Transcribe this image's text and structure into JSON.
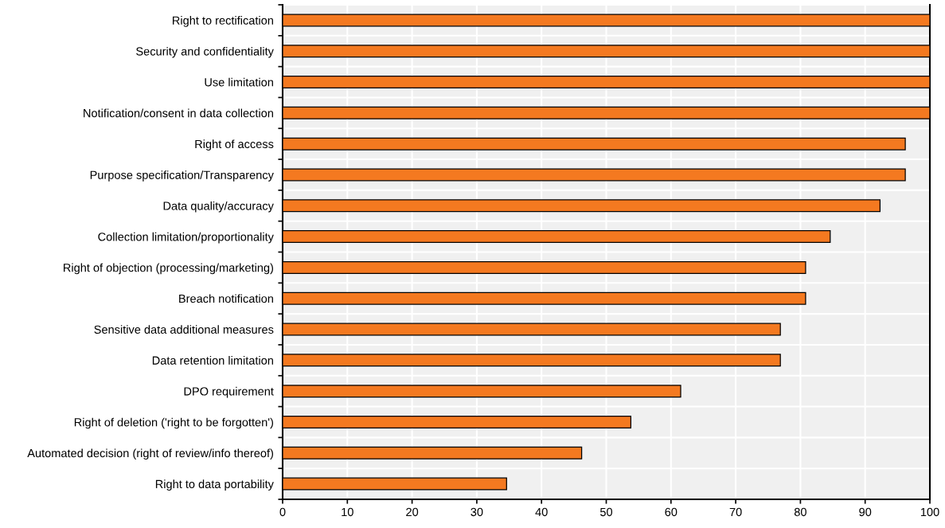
{
  "chart_data": {
    "type": "bar",
    "orientation": "horizontal",
    "categories": [
      "Right to rectification",
      "Security and confidentiality",
      "Use limitation",
      "Notification/consent in data collection",
      "Right of access",
      "Purpose specification/Transparency",
      "Data quality/accuracy",
      "Collection limitation/proportionality",
      "Right of objection (processing/marketing)",
      "Breach notification",
      "Sensitive data additional measures",
      "Data retention limitation",
      "DPO requirement",
      "Right of deletion ('right to be forgotten')",
      "Automated decision (right of review/info thereof)",
      "Right to data portability"
    ],
    "values": [
      100,
      100,
      100,
      100,
      96.2,
      96.2,
      92.3,
      84.6,
      80.8,
      80.8,
      76.9,
      76.9,
      61.5,
      53.8,
      46.2,
      34.6
    ],
    "color": "#f47920",
    "xlim": [
      0,
      100
    ],
    "xticks": [
      0,
      10,
      20,
      30,
      40,
      50,
      60,
      70,
      80,
      90,
      100
    ],
    "grid": true,
    "legend": false
  }
}
